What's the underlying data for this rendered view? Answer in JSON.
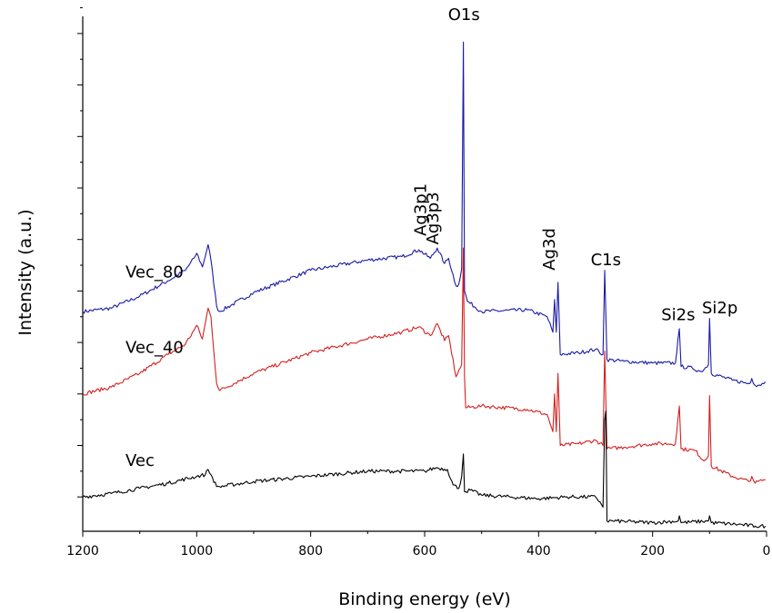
{
  "chart_data": {
    "type": "line",
    "title": "",
    "xlabel": "Binding energy (eV)",
    "ylabel": "Intensity (a.u.)",
    "xlim": [
      1200,
      0
    ],
    "x_reversed": true,
    "ylim": [
      0,
      30
    ],
    "x_ticks": [
      "1200",
      "1000",
      "800",
      "600",
      "400",
      "200",
      "0"
    ],
    "y_ticks_labeled": false,
    "grid": false,
    "legend": "none",
    "series": [
      {
        "name": "Vec_80",
        "color": "#1a1aa6",
        "points": [
          [
            1200,
            12.8
          ],
          [
            1150,
            13.0
          ],
          [
            1100,
            13.7
          ],
          [
            1050,
            14.6
          ],
          [
            1020,
            15.2
          ],
          [
            1005,
            15.9
          ],
          [
            1000,
            16.2
          ],
          [
            990,
            15.4
          ],
          [
            980,
            16.7
          ],
          [
            975,
            15.8
          ],
          [
            965,
            13.1
          ],
          [
            960,
            12.8
          ],
          [
            900,
            13.9
          ],
          [
            800,
            15.2
          ],
          [
            700,
            15.8
          ],
          [
            640,
            16.0
          ],
          [
            610,
            16.4
          ],
          [
            590,
            15.9
          ],
          [
            578,
            16.5
          ],
          [
            565,
            15.6
          ],
          [
            558,
            15.9
          ],
          [
            545,
            14.3
          ],
          [
            540,
            14.4
          ],
          [
            535,
            15.3
          ],
          [
            532,
            28.5
          ],
          [
            530,
            14.0
          ],
          [
            525,
            13.4
          ],
          [
            500,
            12.8
          ],
          [
            420,
            12.9
          ],
          [
            385,
            12.5
          ],
          [
            375,
            11.6
          ],
          [
            372,
            13.5
          ],
          [
            369,
            11.6
          ],
          [
            366,
            14.5
          ],
          [
            362,
            10.3
          ],
          [
            330,
            10.4
          ],
          [
            300,
            10.6
          ],
          [
            287,
            10.3
          ],
          [
            284,
            15.2
          ],
          [
            280,
            10.0
          ],
          [
            250,
            9.9
          ],
          [
            200,
            9.8
          ],
          [
            160,
            9.8
          ],
          [
            153,
            11.8
          ],
          [
            150,
            9.6
          ],
          [
            130,
            9.5
          ],
          [
            115,
            9.3
          ],
          [
            102,
            9.7
          ],
          [
            100,
            12.4
          ],
          [
            97,
            9.2
          ],
          [
            60,
            8.8
          ],
          [
            30,
            8.6
          ],
          [
            26,
            8.9
          ],
          [
            20,
            8.5
          ],
          [
            5,
            8.6
          ],
          [
            2,
            8.7
          ]
        ]
      },
      {
        "name": "Vec_40",
        "color": "#d42020",
        "points": [
          [
            1200,
            8.0
          ],
          [
            1150,
            8.4
          ],
          [
            1100,
            9.2
          ],
          [
            1050,
            10.3
          ],
          [
            1020,
            10.9
          ],
          [
            1005,
            11.7
          ],
          [
            1000,
            12.0
          ],
          [
            990,
            11.2
          ],
          [
            980,
            13.0
          ],
          [
            975,
            12.5
          ],
          [
            965,
            8.6
          ],
          [
            960,
            8.2
          ],
          [
            900,
            9.2
          ],
          [
            800,
            10.4
          ],
          [
            700,
            11.2
          ],
          [
            640,
            11.6
          ],
          [
            610,
            11.9
          ],
          [
            590,
            11.4
          ],
          [
            578,
            12.1
          ],
          [
            565,
            11.1
          ],
          [
            558,
            11.4
          ],
          [
            545,
            9.0
          ],
          [
            535,
            9.7
          ],
          [
            532,
            16.5
          ],
          [
            530,
            9.0
          ],
          [
            528,
            7.2
          ],
          [
            500,
            7.3
          ],
          [
            420,
            7.1
          ],
          [
            385,
            6.8
          ],
          [
            375,
            5.8
          ],
          [
            372,
            8.0
          ],
          [
            369,
            5.8
          ],
          [
            366,
            9.2
          ],
          [
            362,
            5.0
          ],
          [
            330,
            5.1
          ],
          [
            300,
            5.3
          ],
          [
            287,
            5.0
          ],
          [
            284,
            10.5
          ],
          [
            280,
            4.8
          ],
          [
            250,
            4.9
          ],
          [
            200,
            5.1
          ],
          [
            160,
            5.1
          ],
          [
            153,
            7.3
          ],
          [
            150,
            4.8
          ],
          [
            125,
            4.7
          ],
          [
            110,
            4.1
          ],
          [
            102,
            4.4
          ],
          [
            100,
            7.9
          ],
          [
            97,
            3.8
          ],
          [
            60,
            3.2
          ],
          [
            30,
            2.9
          ],
          [
            26,
            3.2
          ],
          [
            20,
            2.8
          ],
          [
            5,
            3.0
          ],
          [
            2,
            3.0
          ]
        ]
      },
      {
        "name": "Vec",
        "color": "#000000",
        "points": [
          [
            1200,
            2.0
          ],
          [
            1150,
            2.2
          ],
          [
            1100,
            2.5
          ],
          [
            1050,
            2.8
          ],
          [
            1000,
            3.2
          ],
          [
            985,
            3.3
          ],
          [
            980,
            3.6
          ],
          [
            975,
            3.3
          ],
          [
            965,
            2.6
          ],
          [
            960,
            2.6
          ],
          [
            900,
            2.9
          ],
          [
            800,
            3.2
          ],
          [
            700,
            3.5
          ],
          [
            600,
            3.5
          ],
          [
            580,
            3.7
          ],
          [
            560,
            3.6
          ],
          [
            550,
            2.7
          ],
          [
            540,
            2.5
          ],
          [
            535,
            3.2
          ],
          [
            532,
            4.5
          ],
          [
            530,
            2.3
          ],
          [
            520,
            2.4
          ],
          [
            500,
            2.1
          ],
          [
            400,
            1.9
          ],
          [
            350,
            2.0
          ],
          [
            300,
            2.0
          ],
          [
            292,
            1.7
          ],
          [
            287,
            1.4
          ],
          [
            284,
            6.5
          ],
          [
            282,
            7.0
          ],
          [
            280,
            0.6
          ],
          [
            270,
            0.6
          ],
          [
            200,
            0.5
          ],
          [
            155,
            0.6
          ],
          [
            153,
            0.9
          ],
          [
            150,
            0.5
          ],
          [
            102,
            0.6
          ],
          [
            100,
            0.9
          ],
          [
            97,
            0.5
          ],
          [
            50,
            0.4
          ],
          [
            20,
            0.3
          ],
          [
            2,
            0.3
          ]
        ]
      }
    ],
    "series_labels": [
      {
        "text": "Vec_80",
        "x": 1125,
        "y": 14.8
      },
      {
        "text": "Vec_40",
        "x": 1125,
        "y": 10.4
      },
      {
        "text": "Vec",
        "x": 1125,
        "y": 3.8
      }
    ],
    "annotations": [
      {
        "text": "O1s",
        "x": 531,
        "y": 29.8,
        "rotated": false
      },
      {
        "text": "Ag3p1",
        "x": 598,
        "y": 17.2,
        "rotated": true
      },
      {
        "text": "Ag3p3",
        "x": 576,
        "y": 16.7,
        "rotated": true
      },
      {
        "text": "Ag3d",
        "x": 372,
        "y": 15.2,
        "rotated": true
      },
      {
        "text": "C1s",
        "x": 282,
        "y": 15.5,
        "rotated": false
      },
      {
        "text": "Si2s",
        "x": 155,
        "y": 12.3,
        "rotated": false
      },
      {
        "text": "Si2p",
        "x": 82,
        "y": 12.7,
        "rotated": false
      }
    ]
  }
}
